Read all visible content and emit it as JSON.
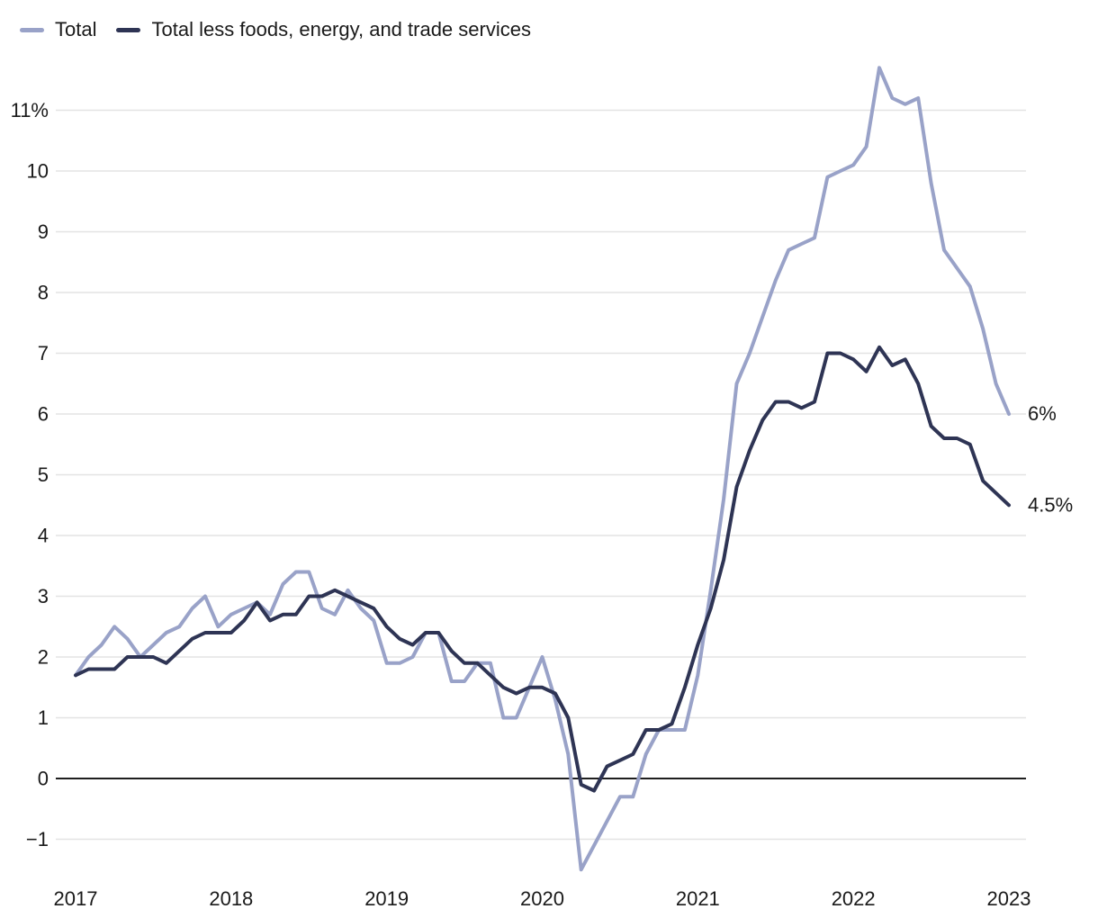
{
  "legend": {
    "items": [
      {
        "label": "Total"
      },
      {
        "label": "Total less foods, energy, and trade services"
      }
    ]
  },
  "colors": {
    "background": "#ffffff",
    "grid": "#e3e3e3",
    "zero_line": "#1f1f1f",
    "text": "#1a1a1a"
  },
  "chart_data": {
    "type": "line",
    "title": "",
    "xlabel": "",
    "ylabel": "",
    "frequency": "monthly",
    "x_start": "Jan 2017",
    "x_end": "Jan 2023",
    "x_tick_labels": [
      "2017",
      "2018",
      "2019",
      "2020",
      "2021",
      "2022",
      "2023"
    ],
    "y_ticks": [
      {
        "value": 11,
        "label": "11%"
      },
      {
        "value": 10,
        "label": "10"
      },
      {
        "value": 9,
        "label": "9"
      },
      {
        "value": 8,
        "label": "8"
      },
      {
        "value": 7,
        "label": "7"
      },
      {
        "value": 6,
        "label": "6"
      },
      {
        "value": 5,
        "label": "5"
      },
      {
        "value": 4,
        "label": "4"
      },
      {
        "value": 3,
        "label": "3"
      },
      {
        "value": 2,
        "label": "2"
      },
      {
        "value": 1,
        "label": "1"
      },
      {
        "value": 0,
        "label": "0"
      },
      {
        "value": -1,
        "label": "−1"
      }
    ],
    "ylim": [
      -1.6,
      12
    ],
    "grid": true,
    "legend_position": "top-left",
    "series": [
      {
        "name": "Total",
        "color": "#99a2c8",
        "end_label": "6%",
        "values": [
          1.7,
          2.0,
          2.2,
          2.5,
          2.3,
          2.0,
          2.2,
          2.4,
          2.5,
          2.8,
          3.0,
          2.5,
          2.7,
          2.8,
          2.9,
          2.7,
          3.2,
          3.4,
          3.4,
          2.8,
          2.7,
          3.1,
          2.8,
          2.6,
          1.9,
          1.9,
          2.0,
          2.4,
          2.4,
          1.6,
          1.6,
          1.9,
          1.9,
          1.0,
          1.0,
          1.5,
          2.0,
          1.3,
          0.4,
          -1.5,
          -1.1,
          -0.7,
          -0.3,
          -0.3,
          0.4,
          0.8,
          0.8,
          0.8,
          1.7,
          3.1,
          4.6,
          6.5,
          7.0,
          7.6,
          8.2,
          8.7,
          8.8,
          8.9,
          9.9,
          10.0,
          10.1,
          10.4,
          11.7,
          11.2,
          11.1,
          11.2,
          9.8,
          8.7,
          8.4,
          8.1,
          7.4,
          6.5,
          6.0
        ]
      },
      {
        "name": "Total less foods, energy, and trade services",
        "color": "#2e3454",
        "end_label": "4.5%",
        "values": [
          1.7,
          1.8,
          1.8,
          1.8,
          2.0,
          2.0,
          2.0,
          1.9,
          2.1,
          2.3,
          2.4,
          2.4,
          2.4,
          2.6,
          2.9,
          2.6,
          2.7,
          2.7,
          3.0,
          3.0,
          3.1,
          3.0,
          2.9,
          2.8,
          2.5,
          2.3,
          2.2,
          2.4,
          2.4,
          2.1,
          1.9,
          1.9,
          1.7,
          1.5,
          1.4,
          1.5,
          1.5,
          1.4,
          1.0,
          -0.1,
          -0.2,
          0.2,
          0.3,
          0.4,
          0.8,
          0.8,
          0.9,
          1.5,
          2.2,
          2.8,
          3.6,
          4.8,
          5.4,
          5.9,
          6.2,
          6.2,
          6.1,
          6.2,
          7.0,
          7.0,
          6.9,
          6.7,
          7.1,
          6.8,
          6.9,
          6.5,
          5.8,
          5.6,
          5.6,
          5.5,
          4.9,
          4.7,
          4.5
        ]
      }
    ]
  }
}
